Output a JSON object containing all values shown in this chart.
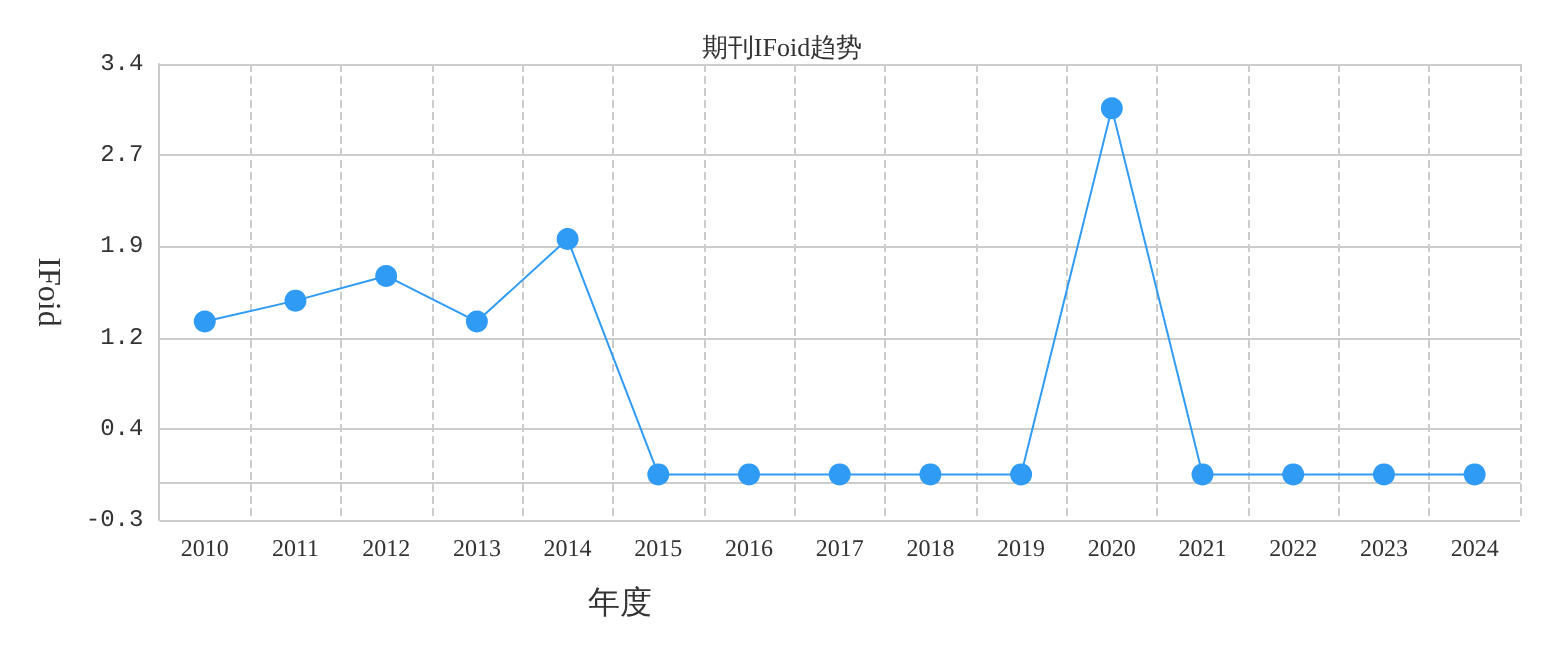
{
  "chart_data": {
    "type": "line",
    "title": "期刊IFoid趋势",
    "xlabel": "年度",
    "ylabel": "IFoid",
    "categories": [
      "2010",
      "2011",
      "2012",
      "2013",
      "2014",
      "2015",
      "2016",
      "2017",
      "2018",
      "2019",
      "2020",
      "2021",
      "2022",
      "2023",
      "2024"
    ],
    "series": [
      {
        "color": "#2f9bf5",
        "values": [
          1.31,
          1.48,
          1.68,
          1.31,
          1.98,
          0.07,
          0.07,
          0.07,
          0.07,
          0.07,
          3.04,
          0.07,
          0.07,
          0.07,
          0.07
        ]
      }
    ],
    "ylim": [
      -0.3,
      3.4
    ],
    "yticks": [
      {
        "value": -0.3,
        "label": "-0.3"
      },
      {
        "value": 0.44,
        "label": "0.4"
      },
      {
        "value": 1.18,
        "label": "1.2"
      },
      {
        "value": 1.92,
        "label": "1.9"
      },
      {
        "value": 2.66,
        "label": "2.7"
      },
      {
        "value": 3.4,
        "label": "3.4"
      }
    ],
    "grid": true,
    "marker": "circle",
    "line_style": "solid"
  }
}
